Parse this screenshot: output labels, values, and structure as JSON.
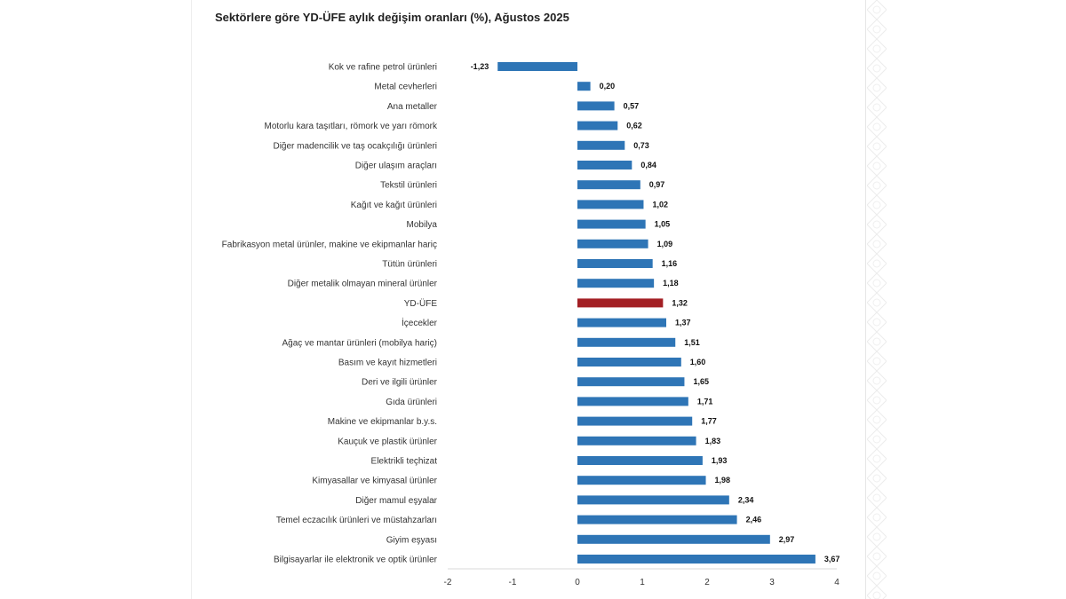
{
  "chart_data": {
    "type": "bar",
    "orientation": "horizontal",
    "title": "Sektörlere göre YD-ÜFE aylık değişim oranları (%), Ağustos 2025",
    "xlabel": "",
    "ylabel": "",
    "xlim": [
      -2,
      4
    ],
    "xticks": [
      "-2",
      "-1",
      "0",
      "1",
      "2",
      "3",
      "4"
    ],
    "grid": false,
    "bar_color": "#2e75b6",
    "highlight_color": "#a31f24",
    "highlight_category": "YD-ÜFE",
    "categories": [
      "Kok ve rafine petrol ürünleri",
      "Metal cevherleri",
      "Ana metaller",
      "Motorlu kara taşıtları, römork ve yarı römork",
      "Diğer madencilik ve taş ocakçılığı ürünleri",
      "Diğer ulaşım araçları",
      "Tekstil ürünleri",
      "Kağıt ve kağıt ürünleri",
      "Mobilya",
      "Fabrikasyon metal ürünler, makine ve ekipmanlar hariç",
      "Tütün ürünleri",
      "Diğer metalik olmayan mineral ürünler",
      "YD-ÜFE",
      "İçecekler",
      "Ağaç ve mantar ürünleri (mobilya hariç)",
      "Basım ve kayıt hizmetleri",
      "Deri ve ilgili ürünler",
      "Gıda ürünleri",
      "Makine ve ekipmanlar b.y.s.",
      "Kauçuk ve plastik ürünler",
      "Elektrikli teçhizat",
      "Kimyasallar ve kimyasal ürünler",
      "Diğer mamul eşyalar",
      "Temel eczacılık ürünleri ve müstahzarları",
      "Giyim eşyası",
      "Bilgisayarlar ile elektronik ve optik ürünler"
    ],
    "values": [
      -1.23,
      0.2,
      0.57,
      0.62,
      0.73,
      0.84,
      0.97,
      1.02,
      1.05,
      1.09,
      1.16,
      1.18,
      1.32,
      1.37,
      1.51,
      1.6,
      1.65,
      1.71,
      1.77,
      1.83,
      1.93,
      1.98,
      2.34,
      2.46,
      2.97,
      3.67
    ],
    "value_labels": [
      "-1,23",
      "0,20",
      "0,57",
      "0,62",
      "0,73",
      "0,84",
      "0,97",
      "1,02",
      "1,05",
      "1,09",
      "1,16",
      "1,18",
      "1,32",
      "1,37",
      "1,51",
      "1,60",
      "1,65",
      "1,71",
      "1,77",
      "1,83",
      "1,93",
      "1,98",
      "2,34",
      "2,46",
      "2,97",
      "3,67"
    ]
  }
}
